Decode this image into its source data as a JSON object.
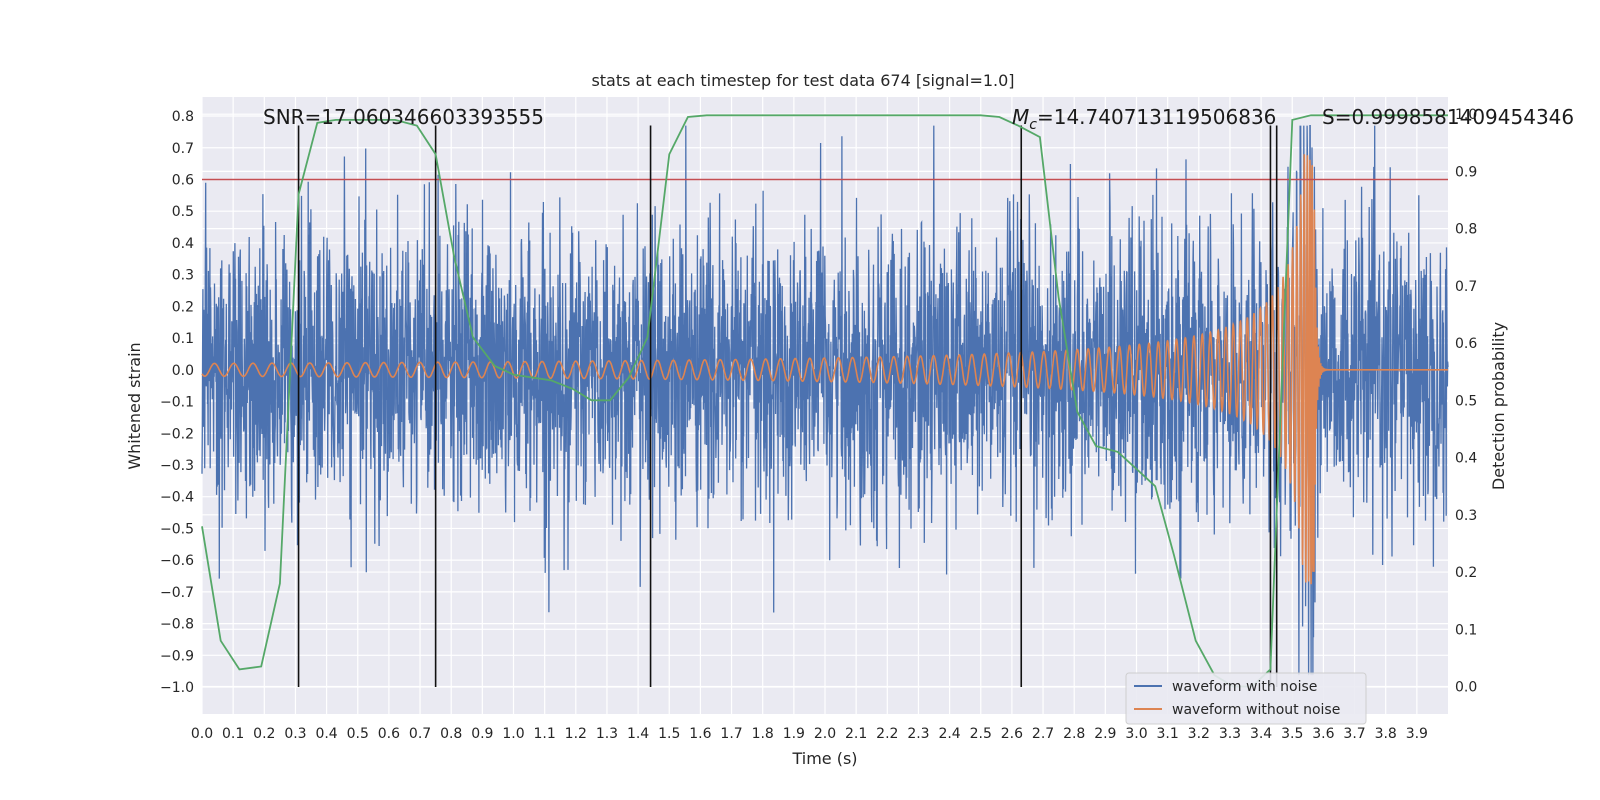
{
  "chart_data": {
    "type": "line",
    "title": "stats at each timestep for test data 674 [signal=1.0]",
    "xlabel": "Time (s)",
    "ylabel": "Whitened strain",
    "y2label": "Detection probability",
    "xlim": [
      0.0,
      4.0
    ],
    "ylim": [
      -1.085,
      0.86
    ],
    "y2lim": [
      -0.048,
      1.03
    ],
    "x_ticks": [
      "0.0",
      "0.1",
      "0.2",
      "0.3",
      "0.4",
      "0.5",
      "0.6",
      "0.7",
      "0.8",
      "0.9",
      "1.0",
      "1.1",
      "1.2",
      "1.3",
      "1.4",
      "1.5",
      "1.6",
      "1.7",
      "1.8",
      "1.9",
      "2.0",
      "2.1",
      "2.2",
      "2.3",
      "2.4",
      "2.5",
      "2.6",
      "2.7",
      "2.8",
      "2.9",
      "3.0",
      "3.1",
      "3.2",
      "3.3",
      "3.4",
      "3.5",
      "3.6",
      "3.7",
      "3.8",
      "3.9"
    ],
    "y_ticks": [
      "0.8",
      "0.7",
      "0.6",
      "0.5",
      "0.4",
      "0.3",
      "0.2",
      "0.1",
      "0.0",
      "−0.1",
      "−0.2",
      "−0.3",
      "−0.4",
      "−0.5",
      "−0.6",
      "−0.7",
      "−0.8",
      "−0.9",
      "−1.0"
    ],
    "y2_ticks": [
      "1.0",
      "0.9",
      "0.8",
      "0.7",
      "0.6",
      "0.5",
      "0.4",
      "0.3",
      "0.2",
      "0.1",
      "0.0"
    ],
    "grid": true,
    "legend_position": "lower-right",
    "annotations": {
      "snr_text": "SNR=17.060346603393555",
      "mc_symbol": "M",
      "mc_sub": "c",
      "mc_value": "=14.740713119506836",
      "s_text": "S=0.9998581409454346"
    },
    "threshold": {
      "value": 0.6,
      "axis": "y",
      "color": "#c44e52"
    },
    "vertical_markers": [
      0.31,
      0.75,
      1.44,
      2.63,
      3.43,
      3.45
    ],
    "series": [
      {
        "name": "waveform with noise",
        "color": "#4c72b0",
        "kind": "noise",
        "amplitude_estimate": 0.22,
        "peak_estimate": 0.77
      },
      {
        "name": "waveform without noise",
        "color": "#dd8452",
        "kind": "chirp",
        "amplitude_start": 0.02,
        "peak_value": 0.68,
        "merger_time": 3.57
      },
      {
        "name": "",
        "color": "#55a868",
        "axis": "y2",
        "x": [
          0.0,
          0.06,
          0.12,
          0.19,
          0.25,
          0.31,
          0.37,
          0.43,
          0.5,
          0.56,
          0.62,
          0.69,
          0.75,
          0.81,
          0.87,
          0.94,
          1.0,
          1.06,
          1.12,
          1.19,
          1.25,
          1.31,
          1.37,
          1.43,
          1.5,
          1.56,
          1.62,
          1.69,
          1.75,
          1.81,
          1.87,
          1.94,
          2.0,
          2.06,
          2.12,
          2.19,
          2.25,
          2.31,
          2.37,
          2.43,
          2.5,
          2.56,
          2.62,
          2.69,
          2.75,
          2.81,
          2.87,
          2.94,
          3.0,
          3.06,
          3.12,
          3.19,
          3.25,
          3.31,
          3.37,
          3.43,
          3.5,
          3.56,
          3.62,
          3.69,
          3.75,
          3.81,
          3.87,
          3.94,
          4.0
        ],
        "values": [
          0.28,
          0.08,
          0.03,
          0.035,
          0.18,
          0.86,
          0.985,
          0.99,
          0.99,
          0.99,
          0.99,
          0.98,
          0.93,
          0.75,
          0.61,
          0.56,
          0.545,
          0.54,
          0.535,
          0.52,
          0.5,
          0.5,
          0.54,
          0.61,
          0.93,
          0.995,
          0.998,
          0.998,
          0.998,
          0.998,
          0.998,
          0.998,
          0.998,
          0.998,
          0.998,
          0.998,
          0.998,
          0.998,
          0.998,
          0.998,
          0.998,
          0.995,
          0.98,
          0.96,
          0.68,
          0.48,
          0.42,
          0.41,
          0.38,
          0.35,
          0.23,
          0.08,
          0.02,
          0.0,
          0.0,
          0.03,
          0.99,
          0.998,
          0.998,
          0.998,
          0.998,
          0.998,
          0.998,
          0.998,
          0.998
        ]
      }
    ]
  }
}
